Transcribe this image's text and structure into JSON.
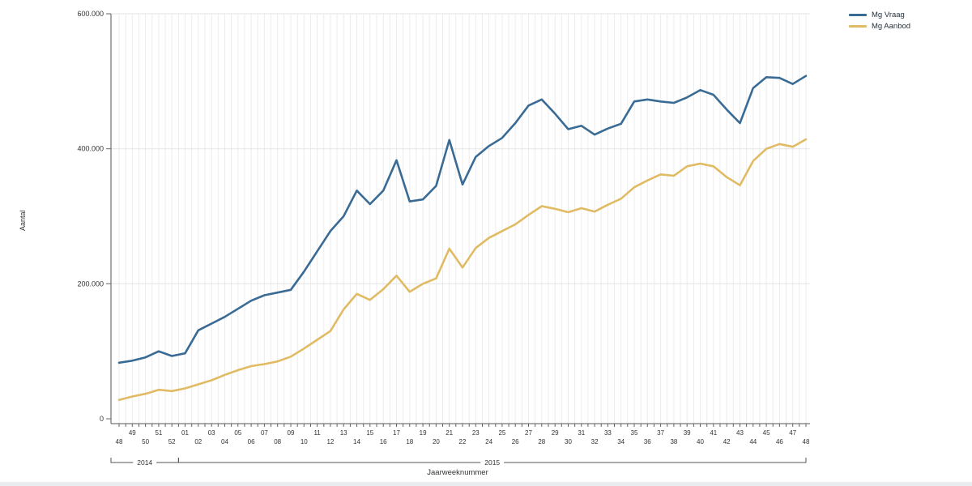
{
  "window": {
    "background_color": "#ffffff"
  },
  "chart_data": {
    "type": "line",
    "xlabel": "Jaarweeknummer",
    "ylabel": "Aantal",
    "ylim": [
      0,
      600000
    ],
    "grid": "vertical-minor-on, horizontal-at-yticks",
    "legend_position": "top-right",
    "ytick_values": [
      0,
      200000,
      400000,
      600000
    ],
    "ytick_labels": [
      "0",
      "200.000",
      "400.000",
      "600.000"
    ],
    "x_week_labels": [
      "48",
      "49",
      "50",
      "51",
      "52",
      "01",
      "02",
      "03",
      "04",
      "05",
      "06",
      "07",
      "08",
      "09",
      "10",
      "11",
      "12",
      "13",
      "14",
      "15",
      "16",
      "17",
      "18",
      "19",
      "20",
      "21",
      "22",
      "23",
      "24",
      "25",
      "26",
      "27",
      "28",
      "29",
      "30",
      "31",
      "32",
      "33",
      "34",
      "35",
      "36",
      "37",
      "38",
      "39",
      "40",
      "41",
      "42",
      "43",
      "44",
      "45",
      "46",
      "47",
      "48"
    ],
    "year_groups": [
      {
        "label": "2014",
        "from_index": 0,
        "to_index": 4
      },
      {
        "label": "2015",
        "from_index": 5,
        "to_index": 52
      }
    ],
    "series": [
      {
        "name": "Mg Vraag",
        "color": "#3A6B94",
        "values": [
          83000,
          86000,
          91000,
          100000,
          93000,
          97000,
          131000,
          141000,
          151000,
          163000,
          175000,
          183000,
          187000,
          191000,
          218000,
          248000,
          278000,
          300000,
          338000,
          318000,
          338000,
          383000,
          322000,
          325000,
          345000,
          413000,
          347000,
          388000,
          404000,
          416000,
          438000,
          464000,
          473000,
          452000,
          429000,
          434000,
          421000,
          430000,
          437000,
          470000,
          473000,
          470000,
          468000,
          476000,
          487000,
          480000,
          458000,
          438000,
          490000,
          506000,
          505000,
          496000,
          508000
        ]
      },
      {
        "name": "Mg Aanbod",
        "color": "#E1BB64",
        "values": [
          28000,
          33000,
          37000,
          43000,
          41000,
          45000,
          51000,
          57000,
          65000,
          72000,
          78000,
          81000,
          85000,
          92000,
          104000,
          117000,
          130000,
          162000,
          185000,
          176000,
          192000,
          212000,
          188000,
          200000,
          208000,
          252000,
          224000,
          253000,
          268000,
          278000,
          288000,
          302000,
          315000,
          311000,
          306000,
          312000,
          307000,
          317000,
          326000,
          343000,
          353000,
          362000,
          360000,
          374000,
          378000,
          374000,
          358000,
          346000,
          382000,
          400000,
          407000,
          403000,
          414000
        ]
      }
    ],
    "colors": {
      "axis": "#555555",
      "tick": "#666666",
      "grid_vertical": "#ececec",
      "grid_horizontal": "#e3e3e3",
      "label_text": "#333333"
    }
  }
}
